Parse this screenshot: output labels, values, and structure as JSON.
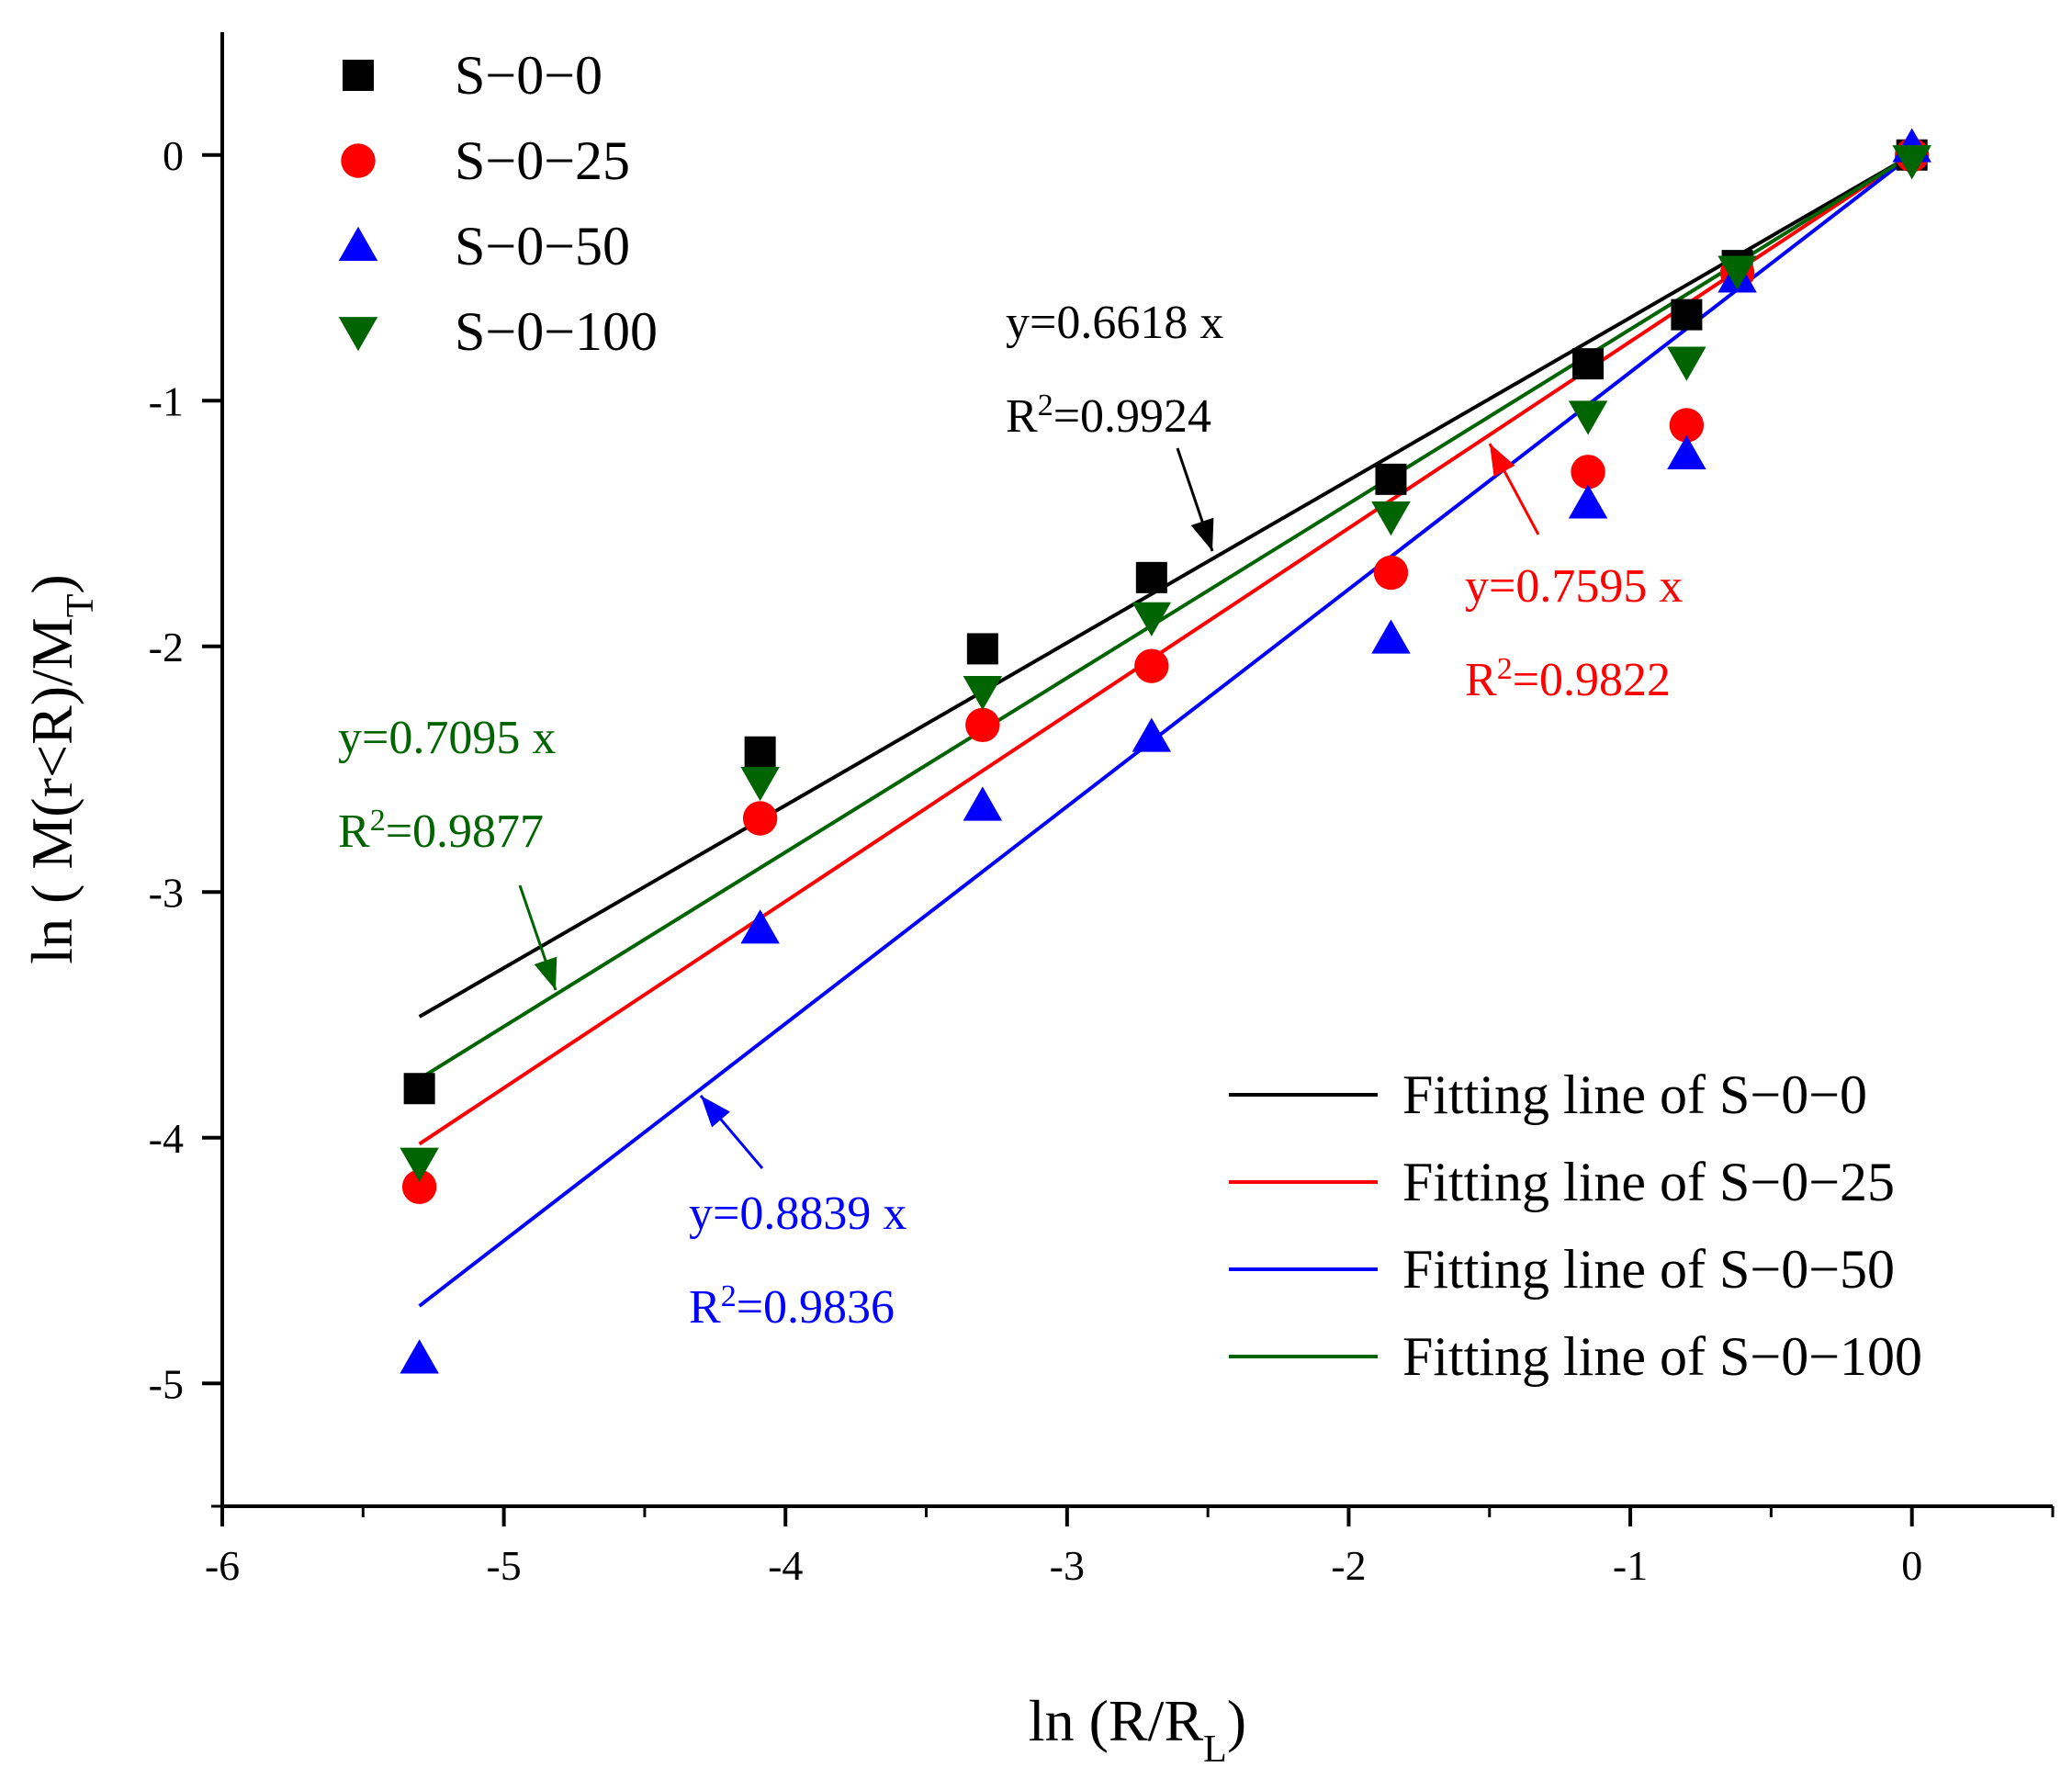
{
  "chart_data": {
    "type": "scatter",
    "xlabel": "ln (R/R_L)",
    "ylabel": "ln ( M(r<R)/M_T)",
    "xlim": [
      -6,
      0.5
    ],
    "ylim": [
      -5.5,
      0.5
    ],
    "x_ticks": [
      -6,
      -5,
      -4,
      -3,
      -2,
      -1,
      0
    ],
    "y_ticks": [
      -5,
      -4,
      -3,
      -2,
      -1,
      0
    ],
    "x": [
      -5.3,
      -4.09,
      -3.3,
      -2.7,
      -1.85,
      -1.15,
      -0.8,
      -0.62,
      0
    ],
    "series": [
      {
        "name": "S−0−0",
        "marker": "square",
        "color": "#000000",
        "values": [
          -3.8,
          -2.43,
          -2.01,
          -1.72,
          -1.32,
          -0.85,
          -0.65,
          -0.45,
          0
        ]
      },
      {
        "name": "S−0−25",
        "marker": "circle",
        "color": "#ff0000",
        "values": [
          -4.2,
          -2.7,
          -2.32,
          -2.08,
          -1.7,
          -1.29,
          -1.1,
          -0.48,
          0
        ]
      },
      {
        "name": "S−0−50",
        "marker": "triangle-up",
        "color": "#0000ff",
        "values": [
          -4.9,
          -3.15,
          -2.65,
          -2.37,
          -1.97,
          -1.42,
          -1.22,
          -0.5,
          0.03
        ]
      },
      {
        "name": "S−0−100",
        "marker": "triangle-down",
        "color": "#006400",
        "values": [
          -4.1,
          -2.55,
          -2.18,
          -1.88,
          -1.47,
          -1.06,
          -0.84,
          -0.47,
          -0.02
        ]
      }
    ],
    "fits": [
      {
        "name": "Fitting line of S−0−0",
        "slope": 0.6618,
        "r2": "0.9924",
        "color": "#000000",
        "eq": "y=0.6618 x",
        "r2_label": "=0.9924"
      },
      {
        "name": "Fitting line of S−0−25",
        "slope": 0.7595,
        "r2": "0.9822",
        "color": "#ff0000",
        "eq": "y=0.7595 x",
        "r2_label": "=0.9822"
      },
      {
        "name": "Fitting line of S−0−50",
        "slope": 0.8839,
        "r2": "0.9836",
        "color": "#0000ff",
        "eq": "y=0.8839 x",
        "r2_label": "=0.9836"
      },
      {
        "name": "Fitting line of S−0−100",
        "slope": 0.7095,
        "r2": "0.9877",
        "color": "#006400",
        "eq": "y=0.7095 x",
        "r2_label": "=0.9877"
      }
    ],
    "legend_markers_placement": "top-left",
    "legend_lines_placement": "bottom-right",
    "grid": false
  }
}
